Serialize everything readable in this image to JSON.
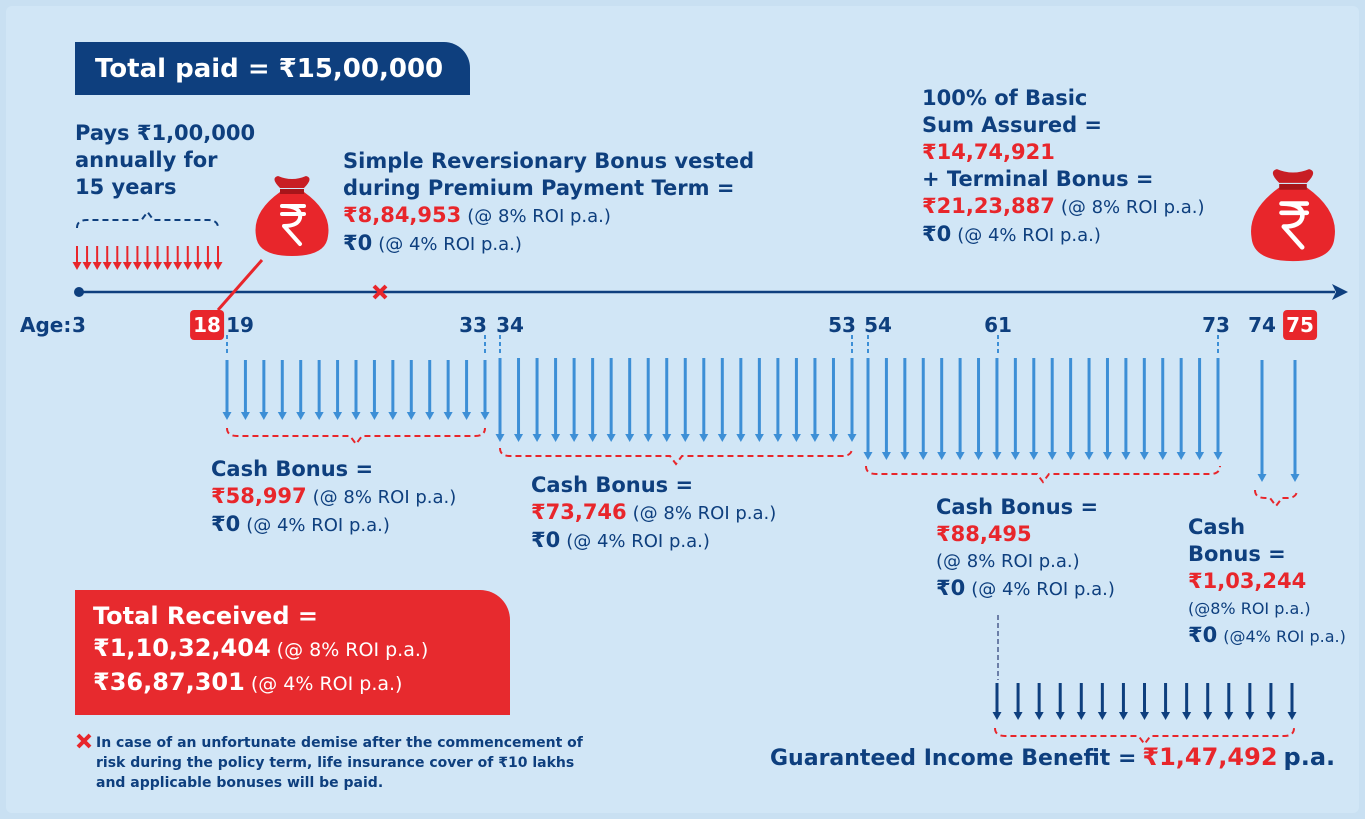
{
  "header": {
    "total_paid": "Total paid = ₹15,00,000"
  },
  "premium": {
    "lines": [
      "Pays ₹1,00,000",
      "annually for",
      "15 years"
    ]
  },
  "srb": {
    "lines": [
      "Simple Reversionary Bonus vested",
      "during Premium Payment Term ="
    ],
    "amount": "₹8,84,953",
    "rate_high": "(@ 8% ROI p.a.)",
    "zero": "₹0",
    "rate_low": "(@ 4% ROI p.a.)"
  },
  "maturity": {
    "lines": [
      "100% of Basic",
      "Sum Assured ="
    ],
    "sum_assured": "₹14,74,921",
    "terminal": "+ Terminal Bonus =",
    "terminal_amount": "₹21,23,887",
    "rate_high": "(@ 8% ROI p.a.)",
    "zero": "₹0",
    "rate_low": "(@ 4% ROI p.a.)"
  },
  "timeline": {
    "label": "Age:",
    "ages": [
      "3",
      "18",
      "19",
      "33",
      "34",
      "53",
      "54",
      "61",
      "73",
      "74",
      "75"
    ]
  },
  "cash_bonuses": [
    {
      "lines": [
        "Cash Bonus ="
      ],
      "amount": "₹58,997",
      "rate_high": "(@ 8% ROI p.a.)",
      "zero": "₹0",
      "rate_low": "(@ 4% ROI p.a.)"
    },
    {
      "lines": [
        "Cash Bonus ="
      ],
      "amount": "₹73,746",
      "rate_high": "(@ 8% ROI p.a.)",
      "zero": "₹0",
      "rate_low": "(@ 4% ROI p.a.)"
    },
    {
      "lines": [
        "Cash Bonus ="
      ],
      "amount": "₹88,495",
      "rate_high": "(@ 8% ROI p.a.)",
      "zero": "₹0",
      "rate_low": "(@ 4% ROI p.a.)"
    },
    {
      "lines": [
        "Cash",
        "Bonus ="
      ],
      "amount": "₹1,03,244",
      "rate_high": "(@8% ROI p.a.)",
      "zero": "₹0",
      "rate_low": "(@4% ROI p.a.)"
    }
  ],
  "total_received": {
    "title": "Total Received =",
    "high_amount": "₹1,10,32,404",
    "high_rate": "(@ 8% ROI p.a.)",
    "low_amount": "₹36,87,301",
    "low_rate": "(@ 4% ROI p.a.)"
  },
  "footnote": [
    "In case of an unfortunate demise after the commencement of",
    "risk during the policy term, life insurance cover of ₹10 lakhs",
    "and applicable bonuses will be paid."
  ],
  "guaranteed_income": {
    "label": "Guaranteed Income Benefit =",
    "amount": "₹1,47,492",
    "unit": "p.a."
  }
}
